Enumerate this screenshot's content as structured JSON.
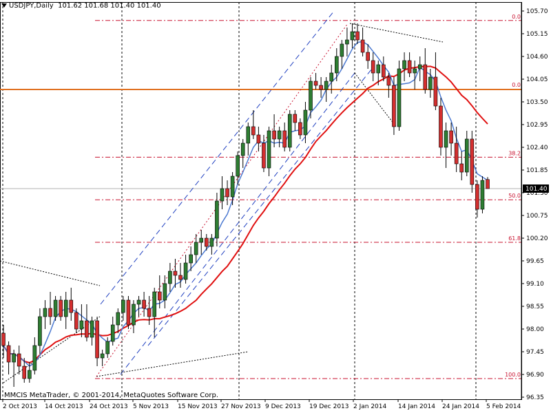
{
  "header": {
    "symbol": "USDJPY,Daily",
    "ohlc": "101.62 101.68 101.40 101.40"
  },
  "footer": {
    "copyright": "MMCIS MetaTrader, © 2001-2014, MetaQuotes Software Corp."
  },
  "colors": {
    "bull": "#2e7d32",
    "bear": "#d32f2f",
    "fast_ma": "#4a78d0",
    "slow_ma": "#e01010",
    "hline": "#e07020",
    "fib": "#c8102e",
    "channel": "#2040c0"
  },
  "chart_data": {
    "type": "candlestick",
    "symbol": "USDJPY",
    "timeframe": "Daily",
    "current_price": "101.40",
    "y_ticks": [
      "105.70",
      "105.15",
      "104.60",
      "104.05",
      "103.50",
      "102.95",
      "102.40",
      "101.85",
      "101.30",
      "100.75",
      "100.20",
      "99.65",
      "99.10",
      "98.55",
      "98.00",
      "97.45",
      "96.90",
      "96.35"
    ],
    "ylim": [
      96.35,
      105.7
    ],
    "x_ticks": [
      "2 Oct 2013",
      "14 Oct 2013",
      "24 Oct 2013",
      "5 Nov 2013",
      "15 Nov 2013",
      "27 Nov 2013",
      "9 Dec 2013",
      "19 Dec 2013",
      "2 Jan 2014",
      "14 Jan 2014",
      "24 Jan 2014",
      "5 Feb 2014"
    ],
    "candles": [
      [
        97.9,
        98.1,
        97.3,
        97.6
      ],
      [
        97.6,
        97.7,
        96.9,
        97.2
      ],
      [
        97.2,
        97.5,
        96.6,
        97.4
      ],
      [
        97.4,
        97.6,
        96.9,
        97.1
      ],
      [
        97.1,
        97.3,
        96.7,
        96.8
      ],
      [
        96.8,
        97.2,
        96.7,
        97.0
      ],
      [
        97.0,
        97.8,
        96.9,
        97.6
      ],
      [
        97.6,
        98.5,
        97.4,
        98.3
      ],
      [
        98.3,
        98.7,
        98.0,
        98.5
      ],
      [
        98.5,
        98.9,
        98.1,
        98.3
      ],
      [
        98.3,
        98.8,
        98.2,
        98.7
      ],
      [
        98.7,
        98.8,
        98.2,
        98.3
      ],
      [
        98.3,
        98.9,
        98.0,
        98.7
      ],
      [
        98.7,
        99.0,
        98.2,
        98.4
      ],
      [
        98.4,
        98.5,
        97.9,
        98.0
      ],
      [
        98.0,
        98.6,
        97.8,
        98.2
      ],
      [
        98.2,
        98.6,
        97.7,
        97.8
      ],
      [
        97.8,
        98.3,
        97.6,
        98.2
      ],
      [
        98.2,
        98.3,
        97.1,
        97.3
      ],
      [
        97.3,
        97.5,
        97.1,
        97.4
      ],
      [
        97.4,
        97.8,
        97.3,
        97.7
      ],
      [
        97.7,
        98.3,
        97.6,
        98.1
      ],
      [
        98.1,
        98.5,
        97.9,
        98.4
      ],
      [
        98.4,
        98.8,
        98.2,
        98.7
      ],
      [
        98.7,
        98.8,
        98.0,
        98.1
      ],
      [
        98.1,
        98.7,
        97.9,
        98.6
      ],
      [
        98.6,
        98.8,
        98.3,
        98.7
      ],
      [
        98.7,
        98.9,
        98.3,
        98.5
      ],
      [
        98.5,
        98.8,
        98.1,
        98.3
      ],
      [
        98.3,
        99.0,
        97.8,
        98.9
      ],
      [
        98.9,
        99.3,
        98.5,
        98.7
      ],
      [
        98.7,
        99.3,
        98.5,
        99.1
      ],
      [
        99.1,
        99.6,
        98.9,
        99.4
      ],
      [
        99.4,
        99.7,
        99.0,
        99.3
      ],
      [
        99.3,
        99.6,
        99.0,
        99.2
      ],
      [
        99.2,
        99.8,
        99.1,
        99.6
      ],
      [
        99.6,
        100.0,
        99.4,
        99.8
      ],
      [
        99.8,
        100.3,
        99.6,
        100.1
      ],
      [
        100.1,
        100.4,
        99.8,
        100.2
      ],
      [
        100.2,
        100.3,
        99.9,
        100.0
      ],
      [
        100.0,
        100.3,
        99.8,
        100.2
      ],
      [
        100.2,
        101.3,
        100.0,
        101.1
      ],
      [
        101.1,
        101.7,
        100.9,
        101.4
      ],
      [
        101.4,
        101.6,
        101.0,
        101.2
      ],
      [
        101.2,
        101.8,
        101.0,
        101.7
      ],
      [
        101.7,
        102.3,
        101.5,
        102.2
      ],
      [
        102.2,
        102.6,
        101.9,
        102.5
      ],
      [
        102.5,
        103.0,
        102.2,
        102.9
      ],
      [
        102.9,
        103.3,
        102.6,
        102.7
      ],
      [
        102.7,
        102.9,
        102.3,
        102.5
      ],
      [
        102.5,
        102.7,
        101.8,
        101.9
      ],
      [
        101.9,
        102.9,
        101.7,
        102.8
      ],
      [
        102.8,
        103.2,
        102.4,
        102.6
      ],
      [
        102.6,
        102.9,
        102.4,
        102.8
      ],
      [
        102.8,
        103.0,
        102.3,
        102.4
      ],
      [
        102.4,
        103.3,
        102.3,
        103.2
      ],
      [
        103.2,
        103.3,
        102.8,
        103.0
      ],
      [
        103.0,
        103.1,
        102.6,
        102.7
      ],
      [
        102.7,
        103.5,
        102.5,
        103.3
      ],
      [
        103.3,
        104.1,
        103.1,
        104.0
      ],
      [
        104.0,
        104.2,
        103.8,
        103.9
      ],
      [
        103.9,
        104.1,
        103.6,
        103.8
      ],
      [
        103.8,
        104.1,
        103.5,
        104.0
      ],
      [
        104.0,
        104.4,
        103.7,
        104.2
      ],
      [
        104.2,
        104.8,
        104.0,
        104.6
      ],
      [
        104.6,
        105.0,
        104.3,
        104.9
      ],
      [
        104.9,
        105.3,
        104.6,
        105.0
      ],
      [
        105.0,
        105.4,
        104.8,
        105.2
      ],
      [
        105.2,
        105.4,
        104.9,
        105.0
      ],
      [
        105.0,
        105.3,
        104.6,
        104.7
      ],
      [
        104.7,
        104.9,
        104.3,
        104.5
      ],
      [
        104.5,
        104.7,
        104.0,
        104.2
      ],
      [
        104.2,
        104.5,
        103.9,
        104.4
      ],
      [
        104.4,
        104.6,
        104.0,
        104.1
      ],
      [
        104.1,
        104.2,
        103.6,
        103.9
      ],
      [
        103.9,
        104.1,
        102.7,
        102.9
      ],
      [
        102.9,
        104.5,
        102.8,
        104.3
      ],
      [
        104.3,
        104.7,
        104.0,
        104.5
      ],
      [
        104.5,
        104.7,
        104.1,
        104.2
      ],
      [
        104.2,
        104.5,
        103.8,
        104.3
      ],
      [
        104.3,
        104.6,
        104.0,
        104.4
      ],
      [
        104.4,
        104.8,
        103.7,
        103.8
      ],
      [
        103.8,
        104.3,
        103.6,
        104.1
      ],
      [
        104.1,
        104.7,
        103.3,
        103.4
      ],
      [
        103.4,
        103.6,
        102.2,
        102.4
      ],
      [
        102.4,
        103.0,
        101.9,
        102.8
      ],
      [
        102.8,
        103.0,
        102.2,
        102.5
      ],
      [
        102.5,
        102.9,
        101.8,
        102.0
      ],
      [
        102.0,
        102.3,
        101.6,
        101.8
      ],
      [
        101.8,
        102.8,
        101.7,
        102.6
      ],
      [
        102.6,
        102.8,
        101.3,
        101.5
      ],
      [
        101.5,
        101.6,
        100.7,
        100.9
      ],
      [
        100.9,
        101.7,
        100.8,
        101.6
      ],
      [
        101.62,
        101.68,
        101.4,
        101.4
      ]
    ],
    "series": [
      {
        "name": "",
        "kind": "fast_ma",
        "values": []
      },
      {
        "name": "",
        "kind": "slow_ma",
        "values": []
      }
    ],
    "horizontal_lines": [
      {
        "label": "101.40",
        "value": 101.4,
        "style": "current-price"
      },
      {
        "label": "",
        "value": 103.8,
        "style": "solid-orange"
      }
    ],
    "fibonacci_levels": [
      {
        "label": "0.0",
        "value": 105.47
      },
      {
        "label": "38.2",
        "value": 102.16
      },
      {
        "label": "50.0",
        "value": 101.13
      },
      {
        "label": "61.8",
        "value": 100.1
      },
      {
        "label": "100.0",
        "value": 96.8
      }
    ],
    "fan_labels": [
      {
        "label": "0.0",
        "value": 103.8
      }
    ],
    "vertical_separators": [
      "2 Oct 2013",
      "24 Oct 2013",
      "27 Nov 2013",
      "2 Jan 2014",
      "5 Feb 2014"
    ]
  }
}
